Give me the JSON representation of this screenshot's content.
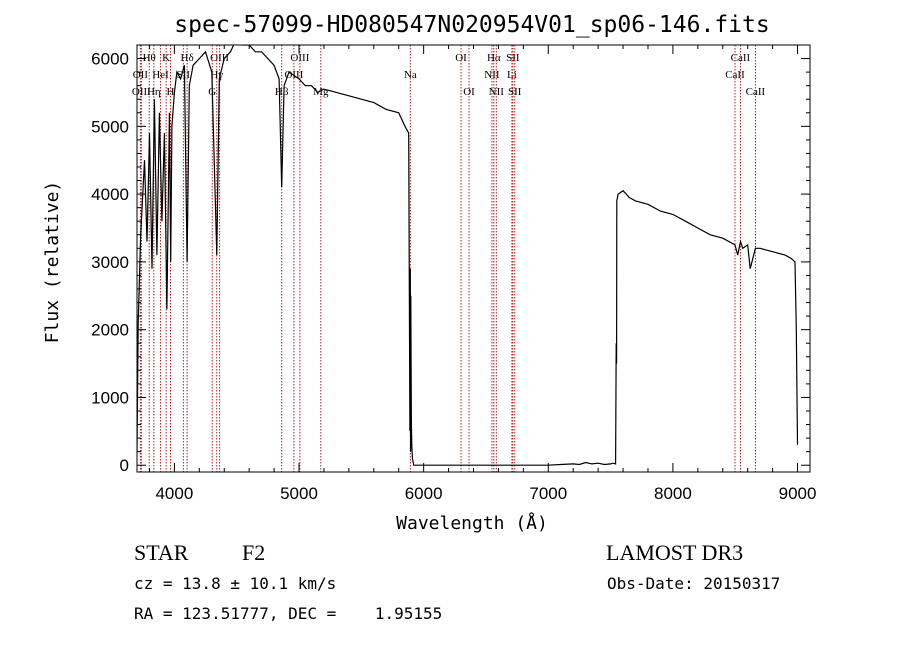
{
  "chart_data": {
    "type": "line",
    "title": "spec-57099-HD080547N020954V01_sp06-146.fits",
    "xlabel": "Wavelength (Å)",
    "ylabel": "Flux (relative)",
    "xlim": [
      3700,
      9100
    ],
    "ylim": [
      -100,
      6200
    ],
    "x_ticks": [
      4000,
      5000,
      6000,
      7000,
      8000,
      9000
    ],
    "x_tick_labels": [
      "4000",
      "5000",
      "6000",
      "7000",
      "8000",
      "9000"
    ],
    "y_ticks": [
      0,
      1000,
      2000,
      3000,
      4000,
      5000,
      6000
    ],
    "y_tick_labels": [
      "0",
      "1000",
      "2000",
      "3000",
      "4000",
      "5000",
      "6000"
    ],
    "series": [
      {
        "name": "flux",
        "x": [
          3700,
          3710,
          3730,
          3760,
          3780,
          3800,
          3820,
          3840,
          3860,
          3880,
          3900,
          3920,
          3940,
          3960,
          3970,
          3980,
          4000,
          4020,
          4050,
          4080,
          4102,
          4120,
          4150,
          4200,
          4250,
          4300,
          4340,
          4360,
          4400,
          4450,
          4500,
          4550,
          4600,
          4650,
          4700,
          4750,
          4800,
          4840,
          4861,
          4880,
          4920,
          5000,
          5050,
          5100,
          5150,
          5200,
          5300,
          5400,
          5500,
          5600,
          5700,
          5800,
          5850,
          5880,
          5890,
          5892,
          5893,
          5895,
          5897,
          5899,
          5902,
          5905,
          5910,
          5915,
          5920,
          6000,
          6500,
          7000,
          7100,
          7200,
          7250,
          7300,
          7350,
          7400,
          7450,
          7500,
          7520,
          7540,
          7545,
          7548,
          7550,
          7560,
          7600,
          7650,
          7700,
          7800,
          7900,
          8000,
          8100,
          8200,
          8300,
          8400,
          8498,
          8520,
          8542,
          8560,
          8600,
          8620,
          8662,
          8700,
          8800,
          8900,
          8950,
          8980,
          8990,
          9000
        ],
        "values": [
          200,
          2100,
          3400,
          4500,
          3300,
          4900,
          2900,
          5400,
          3100,
          5200,
          3600,
          4900,
          2300,
          5200,
          3000,
          5000,
          5500,
          5800,
          5700,
          5900,
          3000,
          5600,
          5900,
          6000,
          6100,
          5800,
          3100,
          5700,
          6000,
          6100,
          6300,
          6200,
          6200,
          6100,
          6100,
          6000,
          5900,
          5700,
          4100,
          5600,
          5800,
          5700,
          5600,
          5600,
          5500,
          5550,
          5500,
          5450,
          5400,
          5350,
          5250,
          5200,
          5000,
          4900,
          500,
          1000,
          2900,
          200,
          2500,
          1500,
          600,
          300,
          100,
          50,
          0,
          0,
          0,
          0,
          10,
          20,
          10,
          40,
          20,
          30,
          10,
          20,
          30,
          20,
          1800,
          1500,
          3900,
          4000,
          4050,
          3950,
          3900,
          3850,
          3750,
          3700,
          3600,
          3500,
          3400,
          3350,
          3250,
          3100,
          3300,
          3200,
          3250,
          2900,
          3200,
          3200,
          3150,
          3100,
          3050,
          3000,
          2000,
          300
        ]
      }
    ],
    "lines": [
      {
        "label": "Hθ",
        "x": 3798,
        "row": 0
      },
      {
        "label": "OII",
        "x": 3727,
        "row": 1
      },
      {
        "label": "OIII",
        "x": 3735,
        "row": 2
      },
      {
        "label": "Hη",
        "x": 3835,
        "row": 2
      },
      {
        "label": "K",
        "x": 3934,
        "row": 0
      },
      {
        "label": "HeI",
        "x": 3889,
        "row": 1
      },
      {
        "label": "H",
        "x": 3969,
        "row": 2
      },
      {
        "label": "Hδ",
        "x": 4102,
        "row": 0
      },
      {
        "label": "SII",
        "x": 4072,
        "row": 1
      },
      {
        "label": "OIII",
        "x": 4363,
        "row": 0
      },
      {
        "label": "Hγ",
        "x": 4340,
        "row": 1
      },
      {
        "label": "G",
        "x": 4304,
        "row": 2
      },
      {
        "label": "OIII",
        "x": 5007,
        "row": 0
      },
      {
        "label": "OIII",
        "x": 4959,
        "row": 1
      },
      {
        "label": "Hβ",
        "x": 4861,
        "row": 2
      },
      {
        "label": "Mg",
        "x": 5175,
        "row": 2
      },
      {
        "label": "Na",
        "x": 5893,
        "row": 1
      },
      {
        "label": "OI",
        "x": 6300,
        "row": 0
      },
      {
        "label": "OI",
        "x": 6364,
        "row": 2
      },
      {
        "label": "Hα",
        "x": 6563,
        "row": 0
      },
      {
        "label": "SII",
        "x": 6716,
        "row": 0
      },
      {
        "label": "NII",
        "x": 6548,
        "row": 1
      },
      {
        "label": "Li",
        "x": 6708,
        "row": 1
      },
      {
        "label": "NII",
        "x": 6583,
        "row": 2
      },
      {
        "label": "SII",
        "x": 6731,
        "row": 2
      },
      {
        "label": "CaII",
        "x": 8542,
        "row": 0
      },
      {
        "label": "CaII",
        "x": 8498,
        "row": 1
      },
      {
        "label": "CaII",
        "x": 8662,
        "row": 2
      }
    ],
    "line_color": "#b22222",
    "series_color": "#000000",
    "grid": false
  },
  "info": {
    "object_class": "STAR",
    "subclass": "F2",
    "survey": "LAMOST DR3",
    "redshift": "cz = 13.8 ± 10.1 km/s",
    "obs_date": "Obs-Date: 20150317",
    "coords": "RA = 123.51777, DEC =    1.95155"
  }
}
